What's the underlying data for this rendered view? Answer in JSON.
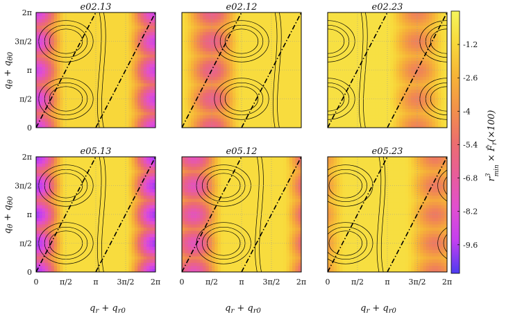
{
  "chart_data": {
    "type": "heatmap",
    "panels": [
      {
        "title": "e02.13",
        "row": 0,
        "col": 0,
        "min": -8.8,
        "max": -1.2,
        "nx": 2,
        "ny": 2,
        "phase_x": 0.25,
        "phase_y": 0.0
      },
      {
        "title": "e02.12",
        "row": 0,
        "col": 1,
        "min": -6.2,
        "max": -1.0,
        "nx": 2,
        "ny": 2,
        "phase_x": 0.5,
        "phase_y": 0.0
      },
      {
        "title": "e02.23",
        "row": 0,
        "col": 2,
        "min": -4.5,
        "max": -0.8,
        "nx": 2,
        "ny": 2,
        "phase_x": 0.0,
        "phase_y": 0.0
      },
      {
        "title": "e05.13",
        "row": 1,
        "col": 0,
        "min": -9.8,
        "max": -1.0,
        "nx": 2,
        "ny": 2,
        "phase_x": 0.25,
        "phase_y": 0.0
      },
      {
        "title": "e05.12",
        "row": 1,
        "col": 1,
        "min": -7.5,
        "max": -1.0,
        "nx": 2,
        "ny": 2,
        "phase_x": 0.35,
        "phase_y": 0.0
      },
      {
        "title": "e05.23",
        "row": 1,
        "col": 2,
        "min": -4.8,
        "max": -0.9,
        "nx": 2,
        "ny": 2,
        "phase_x": 0.15,
        "phase_y": 0.0
      }
    ],
    "x_ticks": [
      "0",
      "π/2",
      "π",
      "3π/2",
      "2π"
    ],
    "y_ticks": [
      "0",
      "π/2",
      "π",
      "3π/2",
      "2π"
    ],
    "xlabel": "q_r + q_r0",
    "ylabel": "q_θ + q_θ0",
    "xlim": [
      0,
      6.2832
    ],
    "ylim": [
      0,
      6.2832
    ],
    "colorbar": {
      "label": "r³min × F̂r(×100)",
      "ticks": [
        "-1.2",
        "-2.6",
        "-4",
        "-5.4",
        "-6.8",
        "-8.2",
        "-9.6"
      ],
      "range": [
        -10.8,
        0.2
      ],
      "colors": [
        "#4d3cf0",
        "#c33ff0",
        "#e24fd0",
        "#e85d9a",
        "#ec6e6e",
        "#f2914a",
        "#f6b338",
        "#f8d83a",
        "#f5f55c"
      ]
    },
    "grid": true,
    "resonance_lines": "dash-dot, slope-2 lines"
  }
}
